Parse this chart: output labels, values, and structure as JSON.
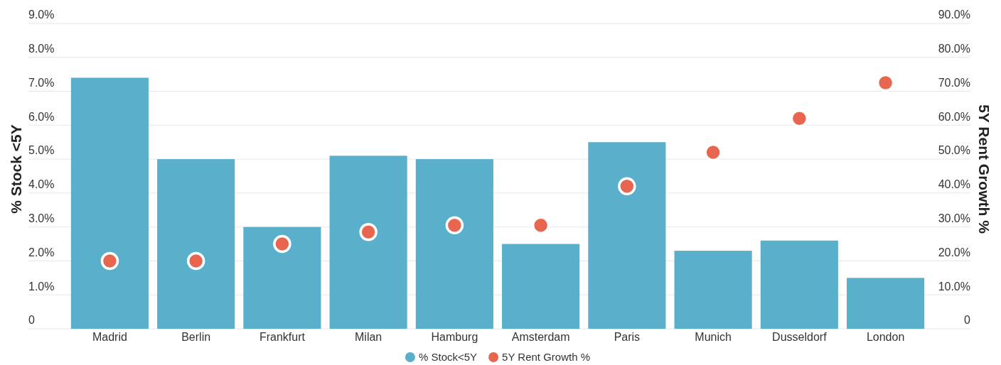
{
  "chart_data": {
    "type": "bar",
    "categories": [
      "Madrid",
      "Berlin",
      "Frankfurt",
      "Milan",
      "Hamburg",
      "Amsterdam",
      "Paris",
      "Munich",
      "Dusseldorf",
      "London"
    ],
    "series": [
      {
        "name": "% Stock<5Y",
        "color": "#5aafcb",
        "values": [
          7.4,
          5.0,
          3.0,
          5.1,
          5.0,
          2.5,
          5.5,
          2.3,
          2.6,
          1.5
        ]
      },
      {
        "name": "5Y Rent Growth %",
        "type": "scatter",
        "axis": "y2",
        "color": "#e8664f",
        "marker": "circle",
        "values": [
          20,
          20,
          25,
          28.5,
          30.5,
          30.5,
          42,
          52,
          62,
          72.5
        ]
      }
    ],
    "ylabel": "% Stock <5Y",
    "y2label": "5Y Rent Growth %",
    "ylim": [
      0,
      9
    ],
    "yticks": [
      {
        "value": 0,
        "label": "0"
      },
      {
        "value": 1,
        "label": "1.0%"
      },
      {
        "value": 2,
        "label": "2.0%"
      },
      {
        "value": 3,
        "label": "3.0%"
      },
      {
        "value": 4,
        "label": "4.0%"
      },
      {
        "value": 5,
        "label": "5.0%"
      },
      {
        "value": 6,
        "label": "6.0%"
      },
      {
        "value": 7,
        "label": "7.0%"
      },
      {
        "value": 8,
        "label": "8.0%"
      },
      {
        "value": 9,
        "label": "9.0%"
      }
    ],
    "y2lim": [
      0,
      90
    ],
    "y2ticks": [
      {
        "value": 0,
        "label": "0"
      },
      {
        "value": 10,
        "label": "10.0%"
      },
      {
        "value": 20,
        "label": "20.0%"
      },
      {
        "value": 30,
        "label": "30.0%"
      },
      {
        "value": 40,
        "label": "40.0%"
      },
      {
        "value": 50,
        "label": "50.0%"
      },
      {
        "value": 60,
        "label": "60.0%"
      },
      {
        "value": 70,
        "label": "70.0%"
      },
      {
        "value": 80,
        "label": "80.0%"
      },
      {
        "value": 90,
        "label": "90.0%"
      }
    ],
    "grid": "y",
    "legend": "bottom"
  }
}
